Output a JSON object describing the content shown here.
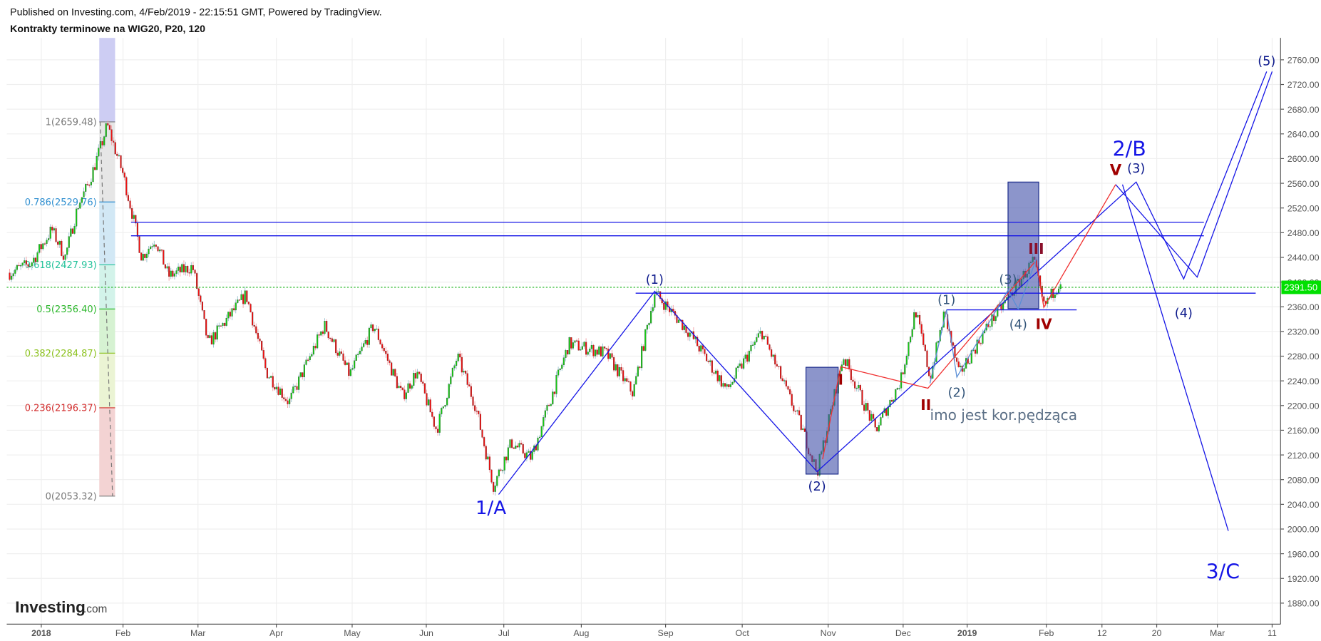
{
  "header": {
    "published": "Published on Investing.com, 4/Feb/2019 - 22:15:51 GMT, Powered by TradingView.",
    "title": "Kontrakty terminowe na WIG20, P20, 120"
  },
  "logo": {
    "text": "Investing",
    "suffix": ".com"
  },
  "chart_data": {
    "type": "candlestick",
    "title": "Kontrakty terminowe na WIG20, P20, 120",
    "ylim": [
      1860,
      2780
    ],
    "grid": true,
    "y_ticks": [
      1880,
      1920,
      1960,
      2000,
      2040,
      2080,
      2120,
      2160,
      2200,
      2240,
      2280,
      2320,
      2360,
      2400,
      2440,
      2480,
      2520,
      2560,
      2600,
      2640,
      2680,
      2720,
      2760
    ],
    "x_ticks": [
      {
        "label": "2018",
        "date": "2018-01-01",
        "bold": true
      },
      {
        "label": "Feb",
        "date": "2018-02-01"
      },
      {
        "label": "Mar",
        "date": "2018-03-01"
      },
      {
        "label": "Apr",
        "date": "2018-04-01"
      },
      {
        "label": "May",
        "date": "2018-05-01"
      },
      {
        "label": "Jun",
        "date": "2018-06-01"
      },
      {
        "label": "Jul",
        "date": "2018-07-01"
      },
      {
        "label": "Aug",
        "date": "2018-08-01"
      },
      {
        "label": "Sep",
        "date": "2018-09-01"
      },
      {
        "label": "Oct",
        "date": "2018-10-01"
      },
      {
        "label": "Nov",
        "date": "2018-11-01"
      },
      {
        "label": "Dec",
        "date": "2018-12-01"
      },
      {
        "label": "2019",
        "date": "2019-01-01",
        "bold": true
      },
      {
        "label": "Feb",
        "date": "2019-02-01"
      },
      {
        "label": "12",
        "date": "2019-02-12"
      },
      {
        "label": "20",
        "date": "2019-02-20"
      },
      {
        "label": "Mar",
        "date": "2019-03-01"
      },
      {
        "label": "11",
        "date": "2019-03-11"
      }
    ],
    "last_price": {
      "value": 2391.5,
      "label": "2391.50",
      "color": "#00e000"
    },
    "colors": {
      "up": "#16c916",
      "down": "#f01010",
      "drawing_blue": "#1515e6",
      "drawing_red": "#f03030",
      "wave_light": "#5b8fd6",
      "label_navy": "#0d1a8c",
      "label_darkred": "#a00000",
      "note": "#5b6f86"
    },
    "price_path": [
      {
        "date": "2017-12-20",
        "price": 2415
      },
      {
        "date": "2017-12-28",
        "price": 2430
      },
      {
        "date": "2018-01-05",
        "price": 2485
      },
      {
        "date": "2018-01-10",
        "price": 2440
      },
      {
        "date": "2018-01-15",
        "price": 2525
      },
      {
        "date": "2018-01-19",
        "price": 2560
      },
      {
        "date": "2018-01-24",
        "price": 2625
      },
      {
        "date": "2018-01-26",
        "price": 2655
      },
      {
        "date": "2018-02-01",
        "price": 2575
      },
      {
        "date": "2018-02-05",
        "price": 2500
      },
      {
        "date": "2018-02-08",
        "price": 2440
      },
      {
        "date": "2018-02-13",
        "price": 2470
      },
      {
        "date": "2018-02-18",
        "price": 2410
      },
      {
        "date": "2018-02-27",
        "price": 2425
      },
      {
        "date": "2018-03-05",
        "price": 2300
      },
      {
        "date": "2018-03-20",
        "price": 2380
      },
      {
        "date": "2018-03-28",
        "price": 2255
      },
      {
        "date": "2018-04-06",
        "price": 2205
      },
      {
        "date": "2018-04-20",
        "price": 2330
      },
      {
        "date": "2018-04-30",
        "price": 2250
      },
      {
        "date": "2018-05-10",
        "price": 2330
      },
      {
        "date": "2018-05-22",
        "price": 2215
      },
      {
        "date": "2018-05-28",
        "price": 2255
      },
      {
        "date": "2018-06-05",
        "price": 2160
      },
      {
        "date": "2018-06-13",
        "price": 2280
      },
      {
        "date": "2018-06-20",
        "price": 2200
      },
      {
        "date": "2018-06-27",
        "price": 2070
      },
      {
        "date": "2018-07-04",
        "price": 2140
      },
      {
        "date": "2018-07-12",
        "price": 2115
      },
      {
        "date": "2018-07-27",
        "price": 2300
      },
      {
        "date": "2018-08-10",
        "price": 2285
      },
      {
        "date": "2018-08-20",
        "price": 2220
      },
      {
        "date": "2018-08-28",
        "price": 2383
      },
      {
        "date": "2018-09-10",
        "price": 2320
      },
      {
        "date": "2018-09-25",
        "price": 2225
      },
      {
        "date": "2018-10-08",
        "price": 2320
      },
      {
        "date": "2018-10-22",
        "price": 2170
      },
      {
        "date": "2018-10-28",
        "price": 2092
      },
      {
        "date": "2018-11-07",
        "price": 2280
      },
      {
        "date": "2018-11-20",
        "price": 2160
      },
      {
        "date": "2018-11-30",
        "price": 2240
      },
      {
        "date": "2018-12-07",
        "price": 2355
      },
      {
        "date": "2018-12-14",
        "price": 2245
      },
      {
        "date": "2018-12-21",
        "price": 2350
      },
      {
        "date": "2018-12-28",
        "price": 2250
      },
      {
        "date": "2019-01-10",
        "price": 2335
      },
      {
        "date": "2019-01-18",
        "price": 2380
      },
      {
        "date": "2019-01-27",
        "price": 2435
      },
      {
        "date": "2019-01-31",
        "price": 2360
      },
      {
        "date": "2019-02-04",
        "price": 2405
      }
    ],
    "fibonacci": {
      "start_date": "2018-01-23",
      "end_date": "2018-01-29",
      "levels": [
        {
          "label": "1(2659.48)",
          "price": 2659.48,
          "color": "#7a7a7a",
          "fill": "#e6e6e6"
        },
        {
          "label": "0.786(2529.76)",
          "price": 2529.76,
          "color": "#2f8fd0",
          "fill": "#d2e8f5"
        },
        {
          "label": "0.618(2427.93)",
          "price": 2427.93,
          "color": "#22c29a",
          "fill": "#d3f3ea"
        },
        {
          "label": "0.5(2356.40)",
          "price": 2356.4,
          "color": "#2db82d",
          "fill": "#d6f2d2"
        },
        {
          "label": "0.382(2284.87)",
          "price": 2284.87,
          "color": "#8cc21e",
          "fill": "#ebf4d4"
        },
        {
          "label": "0.236(2196.37)",
          "price": 2196.37,
          "color": "#d32f2f",
          "fill": "#f3d3d3"
        },
        {
          "label": "0(2053.32)",
          "price": 2053.32,
          "color": "#7a7a7a"
        }
      ],
      "top_fill": "#cdcdf3"
    },
    "hlines": [
      {
        "price": 2497,
        "from": "2018-02-04",
        "to": "2019-02-27",
        "color": "#1515e6"
      },
      {
        "price": 2475,
        "from": "2018-02-04",
        "to": "2019-02-27",
        "color": "#1515e6"
      },
      {
        "price": 2382,
        "from": "2018-08-21",
        "to": "2019-03-08",
        "color": "#1515e6"
      },
      {
        "price": 2355,
        "from": "2018-12-22",
        "to": "2019-02-07",
        "color": "#1515e6"
      }
    ],
    "rectangles": [
      {
        "from": "2018-10-24",
        "to": "2018-11-05",
        "top": 2262,
        "bottom": 2089,
        "color": "#3f4fa8"
      },
      {
        "from": "2019-01-17",
        "to": "2019-01-29",
        "top": 2562,
        "bottom": 2357,
        "color": "#3f4fa8"
      }
    ],
    "polylines": [
      {
        "name": "main-wave",
        "color": "#1515e6",
        "points": [
          [
            "2018-06-29",
            2056
          ],
          [
            "2018-08-28",
            2385
          ],
          [
            "2018-10-28",
            2093
          ],
          [
            "2019-02-17",
            2562
          ],
          [
            "2019-02-24",
            2405
          ],
          [
            "2019-03-10",
            2741
          ]
        ]
      },
      {
        "name": "alt-wave",
        "color": "#1515e6",
        "points": [
          [
            "2019-02-14",
            2558
          ],
          [
            "2019-02-26",
            2408
          ],
          [
            "2019-03-11",
            2741
          ]
        ]
      },
      {
        "name": "c-wave",
        "color": "#1515e6",
        "points": [
          [
            "2019-02-15",
            2558
          ],
          [
            "2019-03-03",
            1997
          ]
        ]
      },
      {
        "name": "red-wave",
        "color": "#f03030",
        "points": [
          [
            "2018-10-30",
            2113
          ],
          [
            "2018-11-06",
            2263
          ],
          [
            "2018-12-13",
            2228
          ],
          [
            "2019-01-28",
            2435
          ],
          [
            "2019-01-31",
            2359
          ],
          [
            "2019-02-14",
            2558
          ]
        ]
      },
      {
        "name": "minor-wave",
        "color": "#5b8fd6",
        "points": [
          [
            "2018-12-14",
            2236
          ],
          [
            "2018-12-22",
            2355
          ],
          [
            "2018-12-27",
            2246
          ],
          [
            "2019-01-17",
            2387
          ],
          [
            "2019-01-21",
            2356
          ],
          [
            "2019-01-28",
            2437
          ]
        ]
      }
    ],
    "labels": [
      {
        "text": "1/A",
        "date": "2018-06-26",
        "price": 2033,
        "color": "#1515e6",
        "size": 22
      },
      {
        "text": "(1)",
        "date": "2018-08-28",
        "price": 2403,
        "color": "#0d1a8c",
        "size": 15
      },
      {
        "text": "(2)",
        "date": "2018-10-28",
        "price": 2068,
        "color": "#0d1a8c",
        "size": 15
      },
      {
        "text": "I",
        "date": "2018-11-06",
        "price": 2240,
        "color": "#a00000",
        "size": 17,
        "bold": true
      },
      {
        "text": "II",
        "date": "2018-12-12",
        "price": 2199,
        "color": "#a00000",
        "size": 17,
        "bold": true
      },
      {
        "text": "(1)",
        "date": "2018-12-22",
        "price": 2370,
        "color": "#34567a",
        "size": 15
      },
      {
        "text": "(2)",
        "date": "2018-12-27",
        "price": 2220,
        "color": "#34567a",
        "size": 15
      },
      {
        "text": "(3)",
        "date": "2019-01-17",
        "price": 2403,
        "color": "#34567a",
        "size": 15
      },
      {
        "text": "(4)",
        "date": "2019-01-21",
        "price": 2330,
        "color": "#34567a",
        "size": 15
      },
      {
        "text": "III",
        "date": "2019-01-28",
        "price": 2452,
        "color": "#8a0f2a",
        "size": 17,
        "bold": true
      },
      {
        "text": "IV",
        "date": "2019-01-31",
        "price": 2330,
        "color": "#a00000",
        "size": 17,
        "bold": true
      },
      {
        "text": "V",
        "date": "2019-02-14",
        "price": 2580,
        "color": "#a00000",
        "size": 18,
        "bold": true
      },
      {
        "text": "2/B",
        "date": "2019-02-16",
        "price": 2614,
        "color": "#1515e6",
        "size": 24
      },
      {
        "text": "(3)",
        "date": "2019-02-17",
        "price": 2583,
        "color": "#0d1a8c",
        "size": 15
      },
      {
        "text": "(4)",
        "date": "2019-02-24",
        "price": 2349,
        "color": "#0d1a8c",
        "size": 15
      },
      {
        "text": "(5)",
        "date": "2019-03-10",
        "price": 2757,
        "color": "#0d1a8c",
        "size": 15
      },
      {
        "text": "3/C",
        "date": "2019-03-02",
        "price": 1929,
        "color": "#1515e6",
        "size": 24
      },
      {
        "text": "imo jest kor.pędząca",
        "date": "2018-12-14",
        "price": 2183,
        "color": "#5b6f86",
        "size": 17,
        "anchor": "start"
      }
    ]
  }
}
